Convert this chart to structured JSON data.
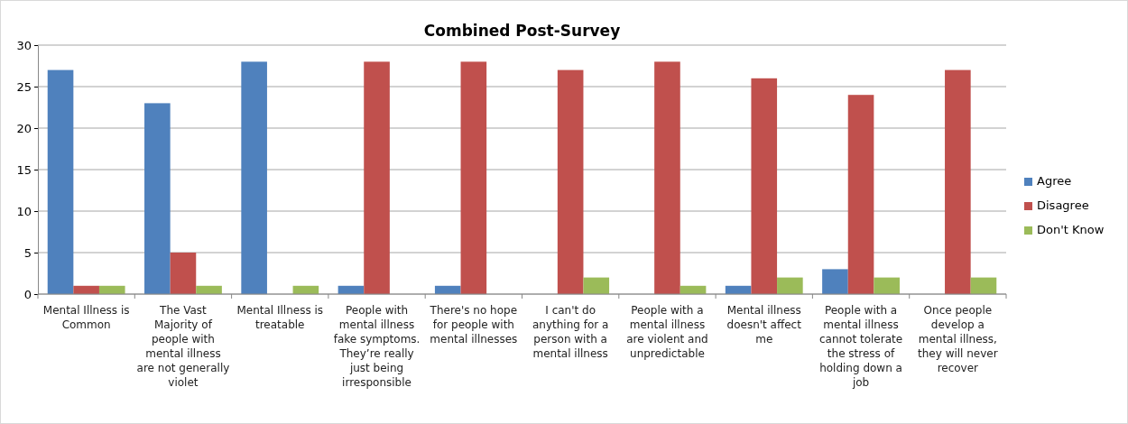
{
  "chart_data": {
    "type": "bar",
    "title": "Combined Post-Survey",
    "categories": [
      "Mental Illness is Common",
      "The Vast Majority of people with mental illness are not generally violet",
      "Mental Illness is treatable",
      "People with mental illness fake symptoms. They’re really just being irresponsible",
      "There's no hope for people with mental illnesses",
      "I can't do anything for a person with a mental illness",
      "People with a mental illness are violent and unpredictable",
      "Mental illness doesn't affect me",
      "People with a mental illness cannot tolerate the stress of holding down a job",
      "Once people develop a mental illness, they will never recover"
    ],
    "series": [
      {
        "name": "Agree",
        "color": "#4f81bd",
        "values": [
          27,
          23,
          28,
          1,
          1,
          0,
          0,
          1,
          3,
          0
        ]
      },
      {
        "name": "Disagree",
        "color": "#c0504d",
        "values": [
          1,
          5,
          0,
          28,
          28,
          27,
          28,
          26,
          24,
          27
        ]
      },
      {
        "name": "Don't Know",
        "color": "#9bbb59",
        "values": [
          1,
          1,
          1,
          0,
          0,
          2,
          1,
          2,
          2,
          2
        ]
      }
    ],
    "ylim": [
      0,
      30
    ],
    "yticks": [
      0,
      5,
      10,
      15,
      20,
      25,
      30
    ],
    "grid": "y",
    "legend": "right"
  }
}
